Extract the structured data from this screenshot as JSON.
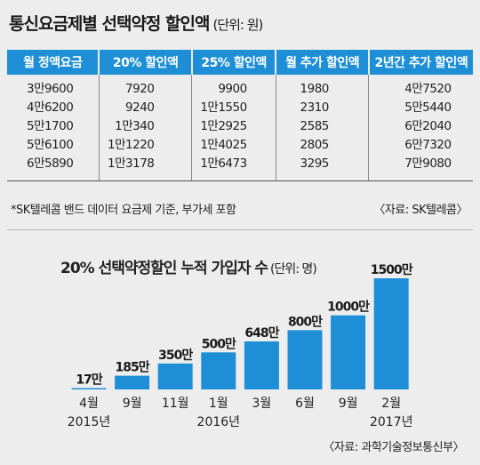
{
  "title": "통신요금제별 선택약정 할인액",
  "title_unit": "(단위: 원)",
  "table": {
    "headers": [
      "월 정액요금",
      "20% 할인액",
      "25% 할인액",
      "월 추가 할인액",
      "2년간 추가 할인액"
    ],
    "rows": [
      [
        "3만9600",
        "7920",
        "9900",
        "1980",
        "4만7520"
      ],
      [
        "4만6200",
        "9240",
        "1만1550",
        "2310",
        "5만5440"
      ],
      [
        "5만1700",
        "1만340",
        "1만2925",
        "2585",
        "6만2040"
      ],
      [
        "5만6100",
        "1만1220",
        "1만4025",
        "2805",
        "6만7320"
      ],
      [
        "6만5890",
        "1만3178",
        "1만6473",
        "3295",
        "7만9080"
      ]
    ]
  },
  "note": "*SK텔레콤 밴드 데이터 요금제 기준, 부가세 포함",
  "source_table": "〈자료: SK텔레콤〉",
  "chart_title": "20% 선택약정할인 누적 가입자 수",
  "chart_unit": "(단위: 명)",
  "source_chart": "〈자료: 과학기술정보통신부〉",
  "colors": {
    "header_bg": "#1e8fd6",
    "bar": "#1e8fd6",
    "background": "#ededed"
  },
  "chart_data": {
    "type": "bar",
    "categories": [
      "4월",
      "9월",
      "11월",
      "1월",
      "3월",
      "6월",
      "9월",
      "2월"
    ],
    "year_labels": [
      {
        "index": 0,
        "label": "2015년"
      },
      {
        "index": 3,
        "label": "2016년"
      },
      {
        "index": 7,
        "label": "2017년"
      }
    ],
    "values": [
      17,
      185,
      350,
      500,
      648,
      800,
      1000,
      1500
    ],
    "value_labels": [
      "17만",
      "185만",
      "350만",
      "500만",
      "648만",
      "800만",
      "1000만",
      "1500만"
    ],
    "unit": "만 명",
    "ylim": [
      0,
      1500
    ],
    "grid": false,
    "legend": "none"
  }
}
